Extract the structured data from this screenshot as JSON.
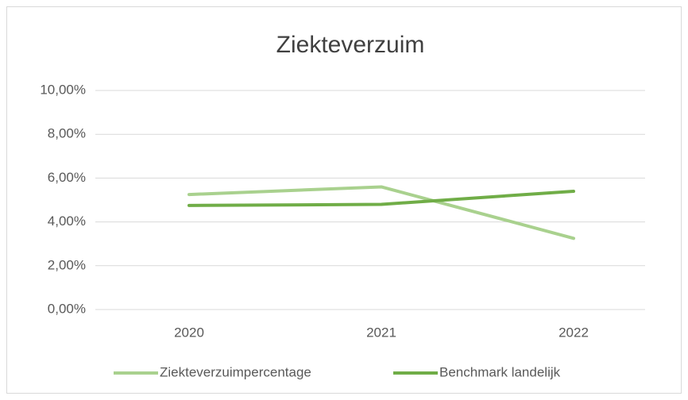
{
  "chart_data": {
    "type": "line",
    "title": "Ziekteverzuim",
    "categories": [
      "2020",
      "2021",
      "2022"
    ],
    "series": [
      {
        "name": "Ziekteverzuimpercentage",
        "color": "#a9d18e",
        "values": [
          5.25,
          5.6,
          3.25
        ]
      },
      {
        "name": "Benchmark landelijk",
        "color": "#70ad47",
        "values": [
          4.75,
          4.8,
          5.4
        ]
      }
    ],
    "ylim": [
      0,
      10
    ],
    "yticks": [
      {
        "value": 0,
        "label": "0,00%"
      },
      {
        "value": 2,
        "label": "2,00%"
      },
      {
        "value": 4,
        "label": "4,00%"
      },
      {
        "value": 6,
        "label": "6,00%"
      },
      {
        "value": 8,
        "label": "8,00%"
      },
      {
        "value": 10,
        "label": "10,00%"
      }
    ],
    "grid": true,
    "legend": "bottom"
  }
}
